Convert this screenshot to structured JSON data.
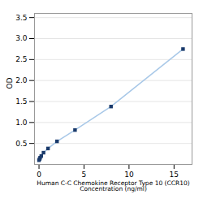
{
  "chart_data": {
    "type": "line",
    "xlabel": "Human C-C Chemokine Receptor Type 10 (CCR10)\nConcentration (ng/ml)",
    "ylabel": "OD",
    "x": [
      0.0,
      0.063,
      0.125,
      0.25,
      0.5,
      1.0,
      2.0,
      4.0,
      8.0,
      16.0
    ],
    "series": [
      {
        "type": "line",
        "color": "#a8c8e8",
        "values": [
          0.1,
          0.13,
          0.16,
          0.2,
          0.28,
          0.38,
          0.55,
          0.82,
          1.38,
          2.75
        ]
      },
      {
        "type": "scatter",
        "color": "#1a3a6b",
        "marker": "square",
        "values": [
          0.1,
          0.13,
          0.16,
          0.2,
          0.28,
          0.38,
          0.55,
          0.82,
          1.38,
          2.75
        ]
      }
    ],
    "xlim": [
      -0.5,
      17
    ],
    "ylim": [
      0,
      3.6
    ],
    "xticks": [
      0,
      5,
      10,
      15
    ],
    "yticks": [
      0.5,
      {
        "value": 1.0,
        "label": "1.0"
      },
      1.5,
      {
        "value": 2.0,
        "label": "2.0"
      },
      2.5,
      {
        "value": 3.0,
        "label": "3.0"
      },
      3.5
    ],
    "grid": "y"
  }
}
